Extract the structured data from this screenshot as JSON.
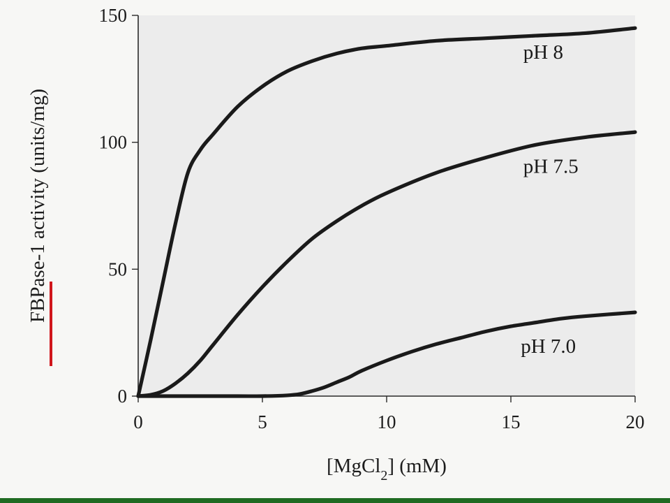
{
  "chart_data": {
    "type": "line",
    "title": "",
    "xlabel": "[MgCl",
    "xlabel_sub": "2",
    "xlabel_unit": "] (mM)",
    "ylabel": "FBPase-1 activity (units/mg)",
    "xlim": [
      0,
      20
    ],
    "ylim": [
      0,
      150
    ],
    "xticks": [
      0,
      5,
      10,
      15,
      20
    ],
    "yticks": [
      0,
      50,
      100,
      150
    ],
    "grid": false,
    "legend": "inline-labels",
    "series": [
      {
        "name": "pH 8",
        "x": [
          0,
          0.5,
          1,
          1.5,
          2,
          2.5,
          3,
          4,
          5,
          6,
          7,
          8,
          9,
          10,
          12,
          14,
          16,
          18,
          20
        ],
        "y": [
          0,
          22,
          45,
          68,
          88,
          97,
          103,
          114,
          122,
          128,
          132,
          135,
          137,
          138,
          140,
          141,
          142,
          143,
          145
        ]
      },
      {
        "name": "pH 7.5",
        "x": [
          0,
          0.5,
          1,
          1.5,
          2,
          2.5,
          3,
          4,
          5,
          6,
          7,
          8,
          9,
          10,
          12,
          14,
          16,
          18,
          20
        ],
        "y": [
          0,
          0.5,
          2,
          5,
          9,
          14,
          20,
          32,
          43,
          53,
          62,
          69,
          75,
          80,
          88,
          94,
          99,
          102,
          104
        ]
      },
      {
        "name": "pH 7.0",
        "x": [
          0,
          2,
          4,
          5,
          6,
          6.5,
          7,
          7.5,
          8,
          8.5,
          9,
          10,
          11,
          12,
          13,
          14,
          15,
          16,
          17,
          18,
          20
        ],
        "y": [
          0,
          0,
          0,
          0,
          0.3,
          0.8,
          2,
          3.5,
          5.5,
          7.5,
          10,
          14,
          17.5,
          20.5,
          23,
          25.5,
          27.5,
          29,
          30.5,
          31.5,
          33
        ]
      }
    ]
  },
  "colors": {
    "plot_background": "#ececec",
    "page_background": "#f7f7f5",
    "curve": "#1a1a1a",
    "bottom_bar": "#1f6b22",
    "ylabel_underline": "#d0161b"
  }
}
